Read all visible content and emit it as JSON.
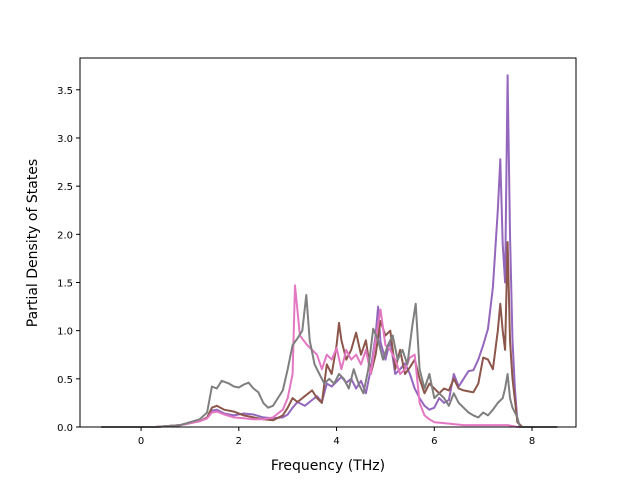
{
  "chart_data": {
    "type": "line",
    "title": "",
    "xlabel": "Frequency (THz)",
    "ylabel": "Partial Density of States",
    "xlim": [
      -1.25,
      8.9
    ],
    "ylim": [
      0,
      3.83
    ],
    "xticks": [
      0,
      2,
      4,
      6,
      8
    ],
    "yticks": [
      0.0,
      0.5,
      1.0,
      1.5,
      2.0,
      2.5,
      3.0,
      3.5
    ],
    "grid": false,
    "legend": "none",
    "series": [
      {
        "color": "#9467bd",
        "points": [
          [
            -0.8,
            0
          ],
          [
            0.3,
            0
          ],
          [
            0.8,
            0.02
          ],
          [
            1.0,
            0.04
          ],
          [
            1.2,
            0.06
          ],
          [
            1.35,
            0.09
          ],
          [
            1.45,
            0.17
          ],
          [
            1.55,
            0.18
          ],
          [
            1.7,
            0.14
          ],
          [
            1.9,
            0.12
          ],
          [
            2.1,
            0.14
          ],
          [
            2.3,
            0.13
          ],
          [
            2.5,
            0.1
          ],
          [
            2.7,
            0.09
          ],
          [
            2.9,
            0.1
          ],
          [
            3.0,
            0.13
          ],
          [
            3.1,
            0.2
          ],
          [
            3.2,
            0.26
          ],
          [
            3.35,
            0.22
          ],
          [
            3.5,
            0.28
          ],
          [
            3.6,
            0.32
          ],
          [
            3.7,
            0.26
          ],
          [
            3.8,
            0.45
          ],
          [
            3.9,
            0.42
          ],
          [
            4.0,
            0.47
          ],
          [
            4.1,
            0.52
          ],
          [
            4.2,
            0.46
          ],
          [
            4.3,
            0.5
          ],
          [
            4.4,
            0.4
          ],
          [
            4.5,
            0.48
          ],
          [
            4.6,
            0.35
          ],
          [
            4.7,
            0.6
          ],
          [
            4.8,
            0.95
          ],
          [
            4.85,
            1.25
          ],
          [
            4.9,
            0.88
          ],
          [
            5.0,
            0.7
          ],
          [
            5.1,
            0.9
          ],
          [
            5.2,
            0.55
          ],
          [
            5.3,
            0.6
          ],
          [
            5.4,
            0.66
          ],
          [
            5.5,
            0.55
          ],
          [
            5.6,
            0.4
          ],
          [
            5.7,
            0.3
          ],
          [
            5.8,
            0.22
          ],
          [
            5.9,
            0.18
          ],
          [
            6.0,
            0.2
          ],
          [
            6.1,
            0.3
          ],
          [
            6.2,
            0.25
          ],
          [
            6.3,
            0.28
          ],
          [
            6.4,
            0.55
          ],
          [
            6.5,
            0.42
          ],
          [
            6.6,
            0.5
          ],
          [
            6.7,
            0.58
          ],
          [
            6.8,
            0.59
          ],
          [
            6.9,
            0.7
          ],
          [
            7.0,
            0.85
          ],
          [
            7.1,
            1.02
          ],
          [
            7.2,
            1.45
          ],
          [
            7.3,
            2.25
          ],
          [
            7.35,
            2.78
          ],
          [
            7.4,
            1.9
          ],
          [
            7.45,
            1.5
          ],
          [
            7.5,
            3.65
          ],
          [
            7.55,
            2.0
          ],
          [
            7.6,
            0.9
          ],
          [
            7.65,
            0.4
          ],
          [
            7.7,
            0.05
          ],
          [
            7.8,
            0
          ],
          [
            8.5,
            0
          ]
        ]
      },
      {
        "color": "#8c564b",
        "points": [
          [
            -0.8,
            0
          ],
          [
            0.3,
            0
          ],
          [
            0.8,
            0.02
          ],
          [
            1.0,
            0.04
          ],
          [
            1.2,
            0.06
          ],
          [
            1.35,
            0.1
          ],
          [
            1.45,
            0.2
          ],
          [
            1.55,
            0.22
          ],
          [
            1.7,
            0.18
          ],
          [
            1.9,
            0.16
          ],
          [
            2.1,
            0.12
          ],
          [
            2.3,
            0.1
          ],
          [
            2.5,
            0.08
          ],
          [
            2.7,
            0.07
          ],
          [
            2.9,
            0.12
          ],
          [
            3.0,
            0.2
          ],
          [
            3.1,
            0.3
          ],
          [
            3.2,
            0.26
          ],
          [
            3.35,
            0.32
          ],
          [
            3.5,
            0.38
          ],
          [
            3.6,
            0.3
          ],
          [
            3.7,
            0.25
          ],
          [
            3.8,
            0.65
          ],
          [
            3.9,
            0.55
          ],
          [
            4.0,
            0.85
          ],
          [
            4.05,
            1.08
          ],
          [
            4.1,
            0.9
          ],
          [
            4.2,
            0.7
          ],
          [
            4.3,
            0.8
          ],
          [
            4.4,
            0.98
          ],
          [
            4.5,
            0.75
          ],
          [
            4.6,
            0.9
          ],
          [
            4.7,
            0.55
          ],
          [
            4.8,
            0.75
          ],
          [
            4.9,
            1.1
          ],
          [
            5.0,
            0.95
          ],
          [
            5.1,
            1.0
          ],
          [
            5.2,
            0.6
          ],
          [
            5.3,
            0.8
          ],
          [
            5.4,
            0.55
          ],
          [
            5.5,
            0.62
          ],
          [
            5.6,
            0.7
          ],
          [
            5.7,
            0.5
          ],
          [
            5.8,
            0.35
          ],
          [
            5.9,
            0.45
          ],
          [
            6.0,
            0.4
          ],
          [
            6.1,
            0.35
          ],
          [
            6.2,
            0.4
          ],
          [
            6.3,
            0.38
          ],
          [
            6.4,
            0.5
          ],
          [
            6.5,
            0.4
          ],
          [
            6.6,
            0.38
          ],
          [
            6.7,
            0.37
          ],
          [
            6.8,
            0.36
          ],
          [
            6.9,
            0.45
          ],
          [
            7.0,
            0.72
          ],
          [
            7.1,
            0.7
          ],
          [
            7.2,
            0.6
          ],
          [
            7.3,
            1.0
          ],
          [
            7.35,
            1.28
          ],
          [
            7.4,
            1.0
          ],
          [
            7.45,
            0.8
          ],
          [
            7.5,
            1.92
          ],
          [
            7.55,
            0.9
          ],
          [
            7.6,
            0.5
          ],
          [
            7.7,
            0.05
          ],
          [
            7.8,
            0
          ],
          [
            8.5,
            0
          ]
        ]
      },
      {
        "color": "#e377c2",
        "points": [
          [
            -0.8,
            0
          ],
          [
            0.3,
            0
          ],
          [
            0.8,
            0.02
          ],
          [
            1.0,
            0.04
          ],
          [
            1.2,
            0.06
          ],
          [
            1.35,
            0.09
          ],
          [
            1.45,
            0.15
          ],
          [
            1.55,
            0.16
          ],
          [
            1.7,
            0.13
          ],
          [
            1.9,
            0.1
          ],
          [
            2.1,
            0.09
          ],
          [
            2.3,
            0.08
          ],
          [
            2.5,
            0.08
          ],
          [
            2.7,
            0.1
          ],
          [
            2.9,
            0.18
          ],
          [
            3.0,
            0.3
          ],
          [
            3.1,
            0.55
          ],
          [
            3.15,
            1.47
          ],
          [
            3.25,
            0.95
          ],
          [
            3.4,
            0.85
          ],
          [
            3.5,
            0.8
          ],
          [
            3.6,
            0.75
          ],
          [
            3.7,
            0.6
          ],
          [
            3.8,
            0.75
          ],
          [
            3.9,
            0.7
          ],
          [
            4.0,
            0.82
          ],
          [
            4.1,
            0.6
          ],
          [
            4.2,
            0.8
          ],
          [
            4.3,
            0.7
          ],
          [
            4.4,
            0.75
          ],
          [
            4.5,
            0.65
          ],
          [
            4.6,
            0.8
          ],
          [
            4.7,
            0.55
          ],
          [
            4.8,
            0.9
          ],
          [
            4.9,
            1.22
          ],
          [
            5.0,
            0.85
          ],
          [
            5.1,
            0.8
          ],
          [
            5.2,
            0.7
          ],
          [
            5.3,
            0.55
          ],
          [
            5.4,
            0.6
          ],
          [
            5.5,
            0.72
          ],
          [
            5.6,
            0.75
          ],
          [
            5.7,
            0.25
          ],
          [
            5.8,
            0.12
          ],
          [
            5.9,
            0.08
          ],
          [
            6.0,
            0.05
          ],
          [
            6.2,
            0.04
          ],
          [
            6.4,
            0.03
          ],
          [
            6.6,
            0.02
          ],
          [
            7.0,
            0.02
          ],
          [
            7.5,
            0.02
          ],
          [
            7.7,
            0
          ],
          [
            8.5,
            0
          ]
        ]
      },
      {
        "color": "#7f7f7f",
        "points": [
          [
            -0.8,
            0
          ],
          [
            0.3,
            0
          ],
          [
            0.8,
            0.02
          ],
          [
            1.0,
            0.05
          ],
          [
            1.2,
            0.08
          ],
          [
            1.35,
            0.15
          ],
          [
            1.45,
            0.42
          ],
          [
            1.55,
            0.4
          ],
          [
            1.65,
            0.48
          ],
          [
            1.8,
            0.45
          ],
          [
            1.9,
            0.42
          ],
          [
            2.0,
            0.41
          ],
          [
            2.1,
            0.44
          ],
          [
            2.2,
            0.46
          ],
          [
            2.3,
            0.4
          ],
          [
            2.4,
            0.36
          ],
          [
            2.5,
            0.25
          ],
          [
            2.6,
            0.2
          ],
          [
            2.7,
            0.22
          ],
          [
            2.8,
            0.3
          ],
          [
            2.9,
            0.38
          ],
          [
            3.0,
            0.6
          ],
          [
            3.1,
            0.85
          ],
          [
            3.2,
            0.92
          ],
          [
            3.3,
            1.0
          ],
          [
            3.38,
            1.37
          ],
          [
            3.45,
            0.9
          ],
          [
            3.55,
            0.65
          ],
          [
            3.65,
            0.55
          ],
          [
            3.75,
            0.45
          ],
          [
            3.85,
            0.5
          ],
          [
            3.95,
            0.45
          ],
          [
            4.05,
            0.55
          ],
          [
            4.15,
            0.5
          ],
          [
            4.25,
            0.4
          ],
          [
            4.35,
            0.6
          ],
          [
            4.45,
            0.45
          ],
          [
            4.55,
            0.35
          ],
          [
            4.65,
            0.6
          ],
          [
            4.75,
            1.02
          ],
          [
            4.85,
            0.9
          ],
          [
            4.95,
            0.7
          ],
          [
            5.05,
            0.85
          ],
          [
            5.15,
            0.95
          ],
          [
            5.25,
            0.7
          ],
          [
            5.35,
            0.8
          ],
          [
            5.45,
            0.65
          ],
          [
            5.55,
            1.05
          ],
          [
            5.62,
            1.28
          ],
          [
            5.7,
            0.6
          ],
          [
            5.8,
            0.4
          ],
          [
            5.9,
            0.55
          ],
          [
            6.0,
            0.3
          ],
          [
            6.1,
            0.35
          ],
          [
            6.2,
            0.3
          ],
          [
            6.3,
            0.22
          ],
          [
            6.4,
            0.35
          ],
          [
            6.5,
            0.25
          ],
          [
            6.6,
            0.2
          ],
          [
            6.7,
            0.15
          ],
          [
            6.8,
            0.12
          ],
          [
            6.9,
            0.1
          ],
          [
            7.0,
            0.15
          ],
          [
            7.1,
            0.12
          ],
          [
            7.2,
            0.18
          ],
          [
            7.3,
            0.25
          ],
          [
            7.4,
            0.3
          ],
          [
            7.45,
            0.4
          ],
          [
            7.5,
            0.55
          ],
          [
            7.55,
            0.3
          ],
          [
            7.6,
            0.2
          ],
          [
            7.7,
            0.1
          ],
          [
            7.75,
            0
          ],
          [
            8.5,
            0
          ]
        ]
      }
    ]
  }
}
